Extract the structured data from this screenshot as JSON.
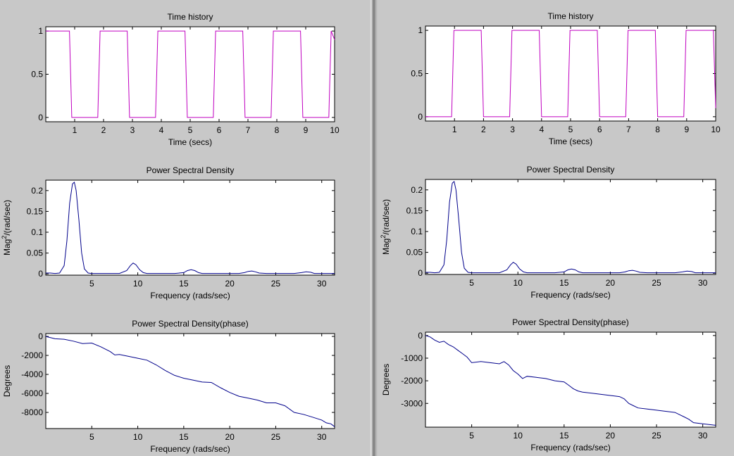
{
  "colors": {
    "background": "#c8c8c8",
    "axes_bg": "#ffffff",
    "time_series": "#c000c0",
    "spectrum_series": "#00008b"
  },
  "panels": [
    {
      "id": "left",
      "charts": [
        {
          "type": "line",
          "title": "Time history",
          "xlabel": "Time (secs)",
          "ylabel": "",
          "xlim": [
            0,
            10
          ],
          "ylim": [
            -0.05,
            1.05
          ],
          "xticks": [
            1,
            2,
            3,
            4,
            5,
            6,
            7,
            8,
            9,
            10
          ],
          "yticks": [
            0,
            0.5,
            1
          ],
          "ytick_labels": [
            "0",
            "0.5",
            "1"
          ],
          "color": "time_series",
          "series": [
            {
              "x": [
                0,
                0.82,
                0.9,
                1.8,
                1.88,
                2.82,
                2.9,
                3.8,
                3.88,
                4.82,
                4.9,
                5.8,
                5.88,
                6.82,
                6.9,
                7.8,
                7.88,
                8.82,
                8.9,
                9.8,
                9.88,
                10
              ],
              "y": [
                1,
                1,
                0,
                0,
                1,
                1,
                0,
                0,
                1,
                1,
                0,
                0,
                1,
                1,
                0,
                0,
                1,
                1,
                0,
                0,
                1,
                0.9
              ]
            }
          ]
        },
        {
          "type": "line",
          "title": "Power Spectral Density",
          "xlabel": "Frequency (rads/sec)",
          "ylabel_base": "Mag",
          "ylabel_sup": "2",
          "ylabel_rest": "/(rad/sec)",
          "xlim": [
            0,
            31.4
          ],
          "ylim": [
            -0.003,
            0.225
          ],
          "xticks": [
            5,
            10,
            15,
            20,
            25,
            30
          ],
          "yticks": [
            0,
            0.05,
            0.1,
            0.15,
            0.2
          ],
          "ytick_labels": [
            "0",
            "0.05",
            "0.1",
            "0.15",
            "0.2"
          ],
          "color": "spectrum_series",
          "series": [
            {
              "x": [
                0,
                0.5,
                1,
                1.5,
                2.0,
                2.3,
                2.6,
                2.9,
                3.1,
                3.3,
                3.6,
                3.9,
                4.2,
                4.6,
                5,
                6,
                7,
                8,
                8.8,
                9.2,
                9.5,
                9.8,
                10.2,
                10.6,
                11,
                12,
                13,
                14,
                15,
                15.4,
                15.8,
                16.2,
                16.6,
                17,
                18,
                19,
                20,
                21,
                21.6,
                22,
                22.4,
                22.8,
                23.2,
                24,
                25,
                26,
                27,
                27.8,
                28.3,
                28.8,
                29.2,
                30,
                31.4
              ],
              "y": [
                0.002,
                0.002,
                0.001,
                0.002,
                0.02,
                0.08,
                0.17,
                0.216,
                0.22,
                0.2,
                0.13,
                0.05,
                0.012,
                0.002,
                0.001,
                0.001,
                0.001,
                0.001,
                0.008,
                0.02,
                0.026,
                0.022,
                0.01,
                0.003,
                0.001,
                0.001,
                0.001,
                0.001,
                0.003,
                0.008,
                0.01,
                0.008,
                0.003,
                0.001,
                0.001,
                0.001,
                0.001,
                0.001,
                0.003,
                0.006,
                0.007,
                0.005,
                0.002,
                0.001,
                0.001,
                0.001,
                0.001,
                0.003,
                0.005,
                0.004,
                0.001,
                0.001,
                0.001
              ]
            }
          ]
        },
        {
          "type": "line",
          "title": "Power Spectral Density(phase)",
          "xlabel": "Frequency (rads/sec)",
          "ylabel": "Degrees",
          "xlim": [
            0,
            31.4
          ],
          "ylim": [
            -9700,
            300
          ],
          "xticks": [
            5,
            10,
            15,
            20,
            25,
            30
          ],
          "yticks": [
            0,
            -2000,
            -4000,
            -6000,
            -8000
          ],
          "ytick_labels": [
            "0",
            "-2000",
            "-4000",
            "-6000",
            "-8000"
          ],
          "color": "spectrum_series",
          "series": [
            {
              "x": [
                0,
                1,
                2,
                3,
                4,
                5,
                6,
                7,
                7.5,
                8,
                9,
                10,
                11,
                12,
                13,
                14,
                15,
                16,
                17,
                18,
                19,
                20,
                21,
                22,
                23,
                24,
                25,
                26,
                27,
                28,
                29,
                30,
                30.5,
                31,
                31.4
              ],
              "y": [
                0,
                -250,
                -300,
                -500,
                -750,
                -700,
                -1100,
                -1600,
                -1950,
                -1900,
                -2100,
                -2300,
                -2500,
                -3000,
                -3600,
                -4100,
                -4400,
                -4600,
                -4800,
                -4850,
                -5400,
                -5900,
                -6300,
                -6500,
                -6700,
                -7000,
                -7000,
                -7300,
                -8000,
                -8200,
                -8500,
                -8800,
                -9100,
                -9200,
                -9500
              ]
            }
          ]
        }
      ]
    },
    {
      "id": "right",
      "charts": [
        {
          "type": "line",
          "title": "Time history",
          "xlabel": "Time (secs)",
          "ylabel": "",
          "xlim": [
            0,
            10
          ],
          "ylim": [
            -0.05,
            1.05
          ],
          "xticks": [
            1,
            2,
            3,
            4,
            5,
            6,
            7,
            8,
            9,
            10
          ],
          "yticks": [
            0,
            0.5,
            1
          ],
          "ytick_labels": [
            "0",
            "0.5",
            "1"
          ],
          "color": "time_series",
          "series": [
            {
              "x": [
                0,
                0.9,
                0.98,
                1.92,
                2.0,
                2.9,
                2.98,
                3.92,
                4.0,
                4.9,
                4.98,
                5.92,
                6.0,
                6.9,
                6.98,
                7.92,
                8.0,
                8.9,
                8.98,
                9.92,
                10
              ],
              "y": [
                0,
                0,
                1,
                1,
                0,
                0,
                1,
                1,
                0,
                0,
                1,
                1,
                0,
                0,
                1,
                1,
                0,
                0,
                1,
                1,
                0.1
              ]
            }
          ]
        },
        {
          "type": "line",
          "title": "Power Spectral Density",
          "xlabel": "Frequency (rads/sec)",
          "ylabel_base": "Mag",
          "ylabel_sup": "2",
          "ylabel_rest": "/(rad/sec)",
          "xlim": [
            0,
            31.4
          ],
          "ylim": [
            -0.003,
            0.225
          ],
          "xticks": [
            5,
            10,
            15,
            20,
            25,
            30
          ],
          "yticks": [
            0,
            0.05,
            0.1,
            0.15,
            0.2
          ],
          "ytick_labels": [
            "0",
            "0.05",
            "0.1",
            "0.15",
            "0.2"
          ],
          "color": "spectrum_series",
          "series": [
            {
              "x": [
                0,
                0.5,
                1,
                1.5,
                2.0,
                2.3,
                2.6,
                2.9,
                3.1,
                3.3,
                3.6,
                3.9,
                4.2,
                4.6,
                5,
                6,
                7,
                8,
                8.8,
                9.2,
                9.5,
                9.8,
                10.2,
                10.6,
                11,
                12,
                13,
                14,
                15,
                15.4,
                15.8,
                16.2,
                16.6,
                17,
                18,
                19,
                20,
                21,
                21.6,
                22,
                22.4,
                22.8,
                23.2,
                24,
                25,
                26,
                27,
                27.8,
                28.3,
                28.8,
                29.2,
                30,
                31.4
              ],
              "y": [
                0.002,
                0.002,
                0.001,
                0.002,
                0.02,
                0.08,
                0.17,
                0.216,
                0.22,
                0.2,
                0.13,
                0.05,
                0.012,
                0.002,
                0.001,
                0.001,
                0.001,
                0.001,
                0.008,
                0.02,
                0.026,
                0.022,
                0.01,
                0.003,
                0.001,
                0.001,
                0.001,
                0.001,
                0.003,
                0.008,
                0.01,
                0.008,
                0.003,
                0.001,
                0.001,
                0.001,
                0.001,
                0.001,
                0.003,
                0.006,
                0.007,
                0.005,
                0.002,
                0.001,
                0.001,
                0.001,
                0.001,
                0.003,
                0.005,
                0.004,
                0.001,
                0.001,
                0.001
              ]
            }
          ]
        },
        {
          "type": "line",
          "title": "Power Spectral Density(phase)",
          "xlabel": "Frequency (rads/sec)",
          "ylabel": "Degrees",
          "xlim": [
            0,
            31.4
          ],
          "ylim": [
            -4050,
            150
          ],
          "xticks": [
            5,
            10,
            15,
            20,
            25,
            30
          ],
          "yticks": [
            0,
            -1000,
            -2000,
            -3000
          ],
          "ytick_labels": [
            "0",
            "-1000",
            "-2000",
            "-3000"
          ],
          "color": "spectrum_series",
          "series": [
            {
              "x": [
                0,
                0.5,
                1,
                1.5,
                2,
                2.5,
                3,
                3.5,
                4,
                4.5,
                4.8,
                5,
                6,
                7,
                8,
                8.5,
                9,
                9.5,
                10,
                10.5,
                11,
                12,
                13,
                14,
                15,
                15.5,
                16,
                16.5,
                17,
                18,
                19,
                20,
                21,
                21.5,
                22,
                22.5,
                23,
                24,
                25,
                26,
                27,
                27.5,
                28,
                28.5,
                29,
                30,
                31,
                31.4
              ],
              "y": [
                0,
                -60,
                -200,
                -300,
                -250,
                -400,
                -500,
                -650,
                -800,
                -950,
                -1100,
                -1200,
                -1150,
                -1200,
                -1250,
                -1150,
                -1300,
                -1550,
                -1700,
                -1900,
                -1800,
                -1850,
                -1900,
                -2000,
                -2050,
                -2200,
                -2350,
                -2450,
                -2500,
                -2550,
                -2600,
                -2650,
                -2700,
                -2800,
                -3000,
                -3100,
                -3200,
                -3250,
                -3300,
                -3350,
                -3400,
                -3500,
                -3600,
                -3700,
                -3850,
                -3900,
                -3950,
                -3970
              ]
            }
          ]
        }
      ]
    }
  ]
}
